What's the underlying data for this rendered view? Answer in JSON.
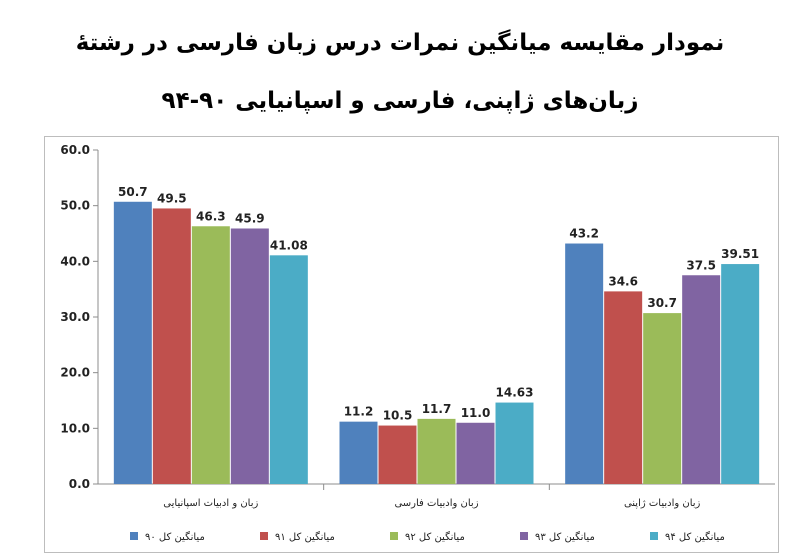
{
  "title_lines": [
    "نمودار مقایسه میانگین نمرات درس زبان فارسی در رشتهٔ",
    "زبان‌های ژاپنی، فارسی و اسپانیایی ۹۰-۹۴"
  ],
  "chart_data": {
    "type": "bar",
    "title": "نمودار مقایسه میانگین نمرات درس زبان فارسی در رشتهٔ زبان‌های ژاپنی، فارسی و اسپانیایی ۹۰-۹۴",
    "categories": [
      "زبان و ادبیات اسپانیایی",
      "زبان وادبیات فارسی",
      "زبان وادبیات ژاپنی"
    ],
    "ylim": [
      0,
      60
    ],
    "yticks": [
      "0.0",
      "10.0",
      "20.0",
      "30.0",
      "40.0",
      "50.0",
      "60.0"
    ],
    "grid": false,
    "legend_position": "bottom",
    "series": [
      {
        "name": "میانگین کل ۹۰",
        "color": "#4f81bd",
        "values": [
          50.7,
          11.2,
          43.2
        ],
        "labels": [
          "50.7",
          "11.2",
          "43.2"
        ]
      },
      {
        "name": "میانگین کل ۹۱",
        "color": "#c0504d",
        "values": [
          49.5,
          10.5,
          34.6
        ],
        "labels": [
          "49.5",
          "10.5",
          "34.6"
        ]
      },
      {
        "name": "میانگین کل ۹۲",
        "color": "#9bbb59",
        "values": [
          46.3,
          11.7,
          30.7
        ],
        "labels": [
          "46.3",
          "11.7",
          "30.7"
        ]
      },
      {
        "name": "میانگین کل ۹۳",
        "color": "#8064a2",
        "values": [
          45.9,
          11.0,
          37.5
        ],
        "labels": [
          "45.9",
          "11.0",
          "37.5"
        ]
      },
      {
        "name": "میانگین کل ۹۴",
        "color": "#4bacc6",
        "values": [
          41.08,
          14.63,
          39.51
        ],
        "labels": [
          "41.08",
          "14.63",
          "39.51"
        ]
      }
    ]
  }
}
